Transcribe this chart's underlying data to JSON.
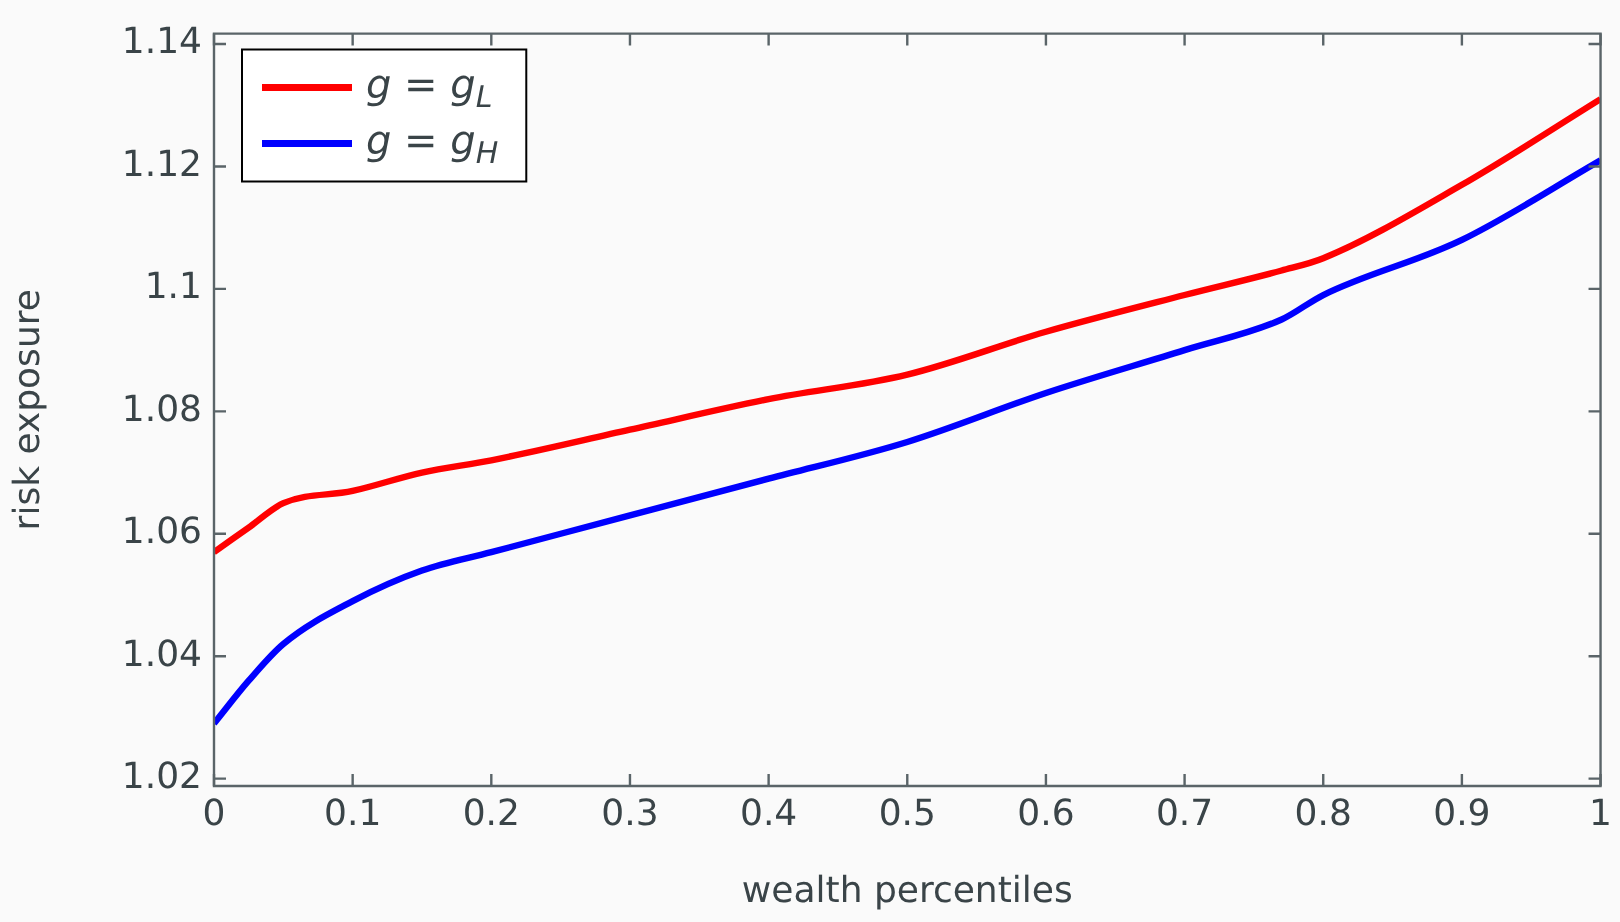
{
  "chart_data": {
    "type": "line",
    "xlabel": "wealth percentiles",
    "ylabel": "risk exposure",
    "xlim": [
      0,
      1
    ],
    "xticks": [
      0,
      0.1,
      0.2,
      0.3,
      0.4,
      0.5,
      0.6,
      0.7,
      0.8,
      0.9,
      1
    ],
    "ylim": [
      1.0188,
      1.1417
    ],
    "yticks": [
      1.02,
      1.04,
      1.06,
      1.08,
      {
        "value": 1.1,
        "label": "1.1"
      },
      1.12,
      1.14
    ],
    "grid": false,
    "legend": "top left",
    "marker": "none",
    "line_style": "solid",
    "x": [
      0,
      0.025,
      0.05,
      0.1,
      0.15,
      0.2,
      0.3,
      0.4,
      0.5,
      0.6,
      0.7,
      0.77,
      0.8,
      0.9,
      1
    ],
    "series": [
      {
        "name": "g = g$_{L}$",
        "color": "#ff0000",
        "values": [
          1.057,
          1.061,
          1.065,
          1.067,
          1.07,
          1.072,
          1.077,
          1.082,
          1.086,
          1.093,
          1.099,
          1.103,
          1.105,
          1.117,
          1.131
        ]
      },
      {
        "name": "g = g$_{H}$",
        "color": "#0000ff",
        "values": [
          1.029,
          1.036,
          1.042,
          1.049,
          1.054,
          1.057,
          1.063,
          1.069,
          1.075,
          1.083,
          1.09,
          1.095,
          1.099,
          1.108,
          1.121
        ]
      }
    ]
  }
}
